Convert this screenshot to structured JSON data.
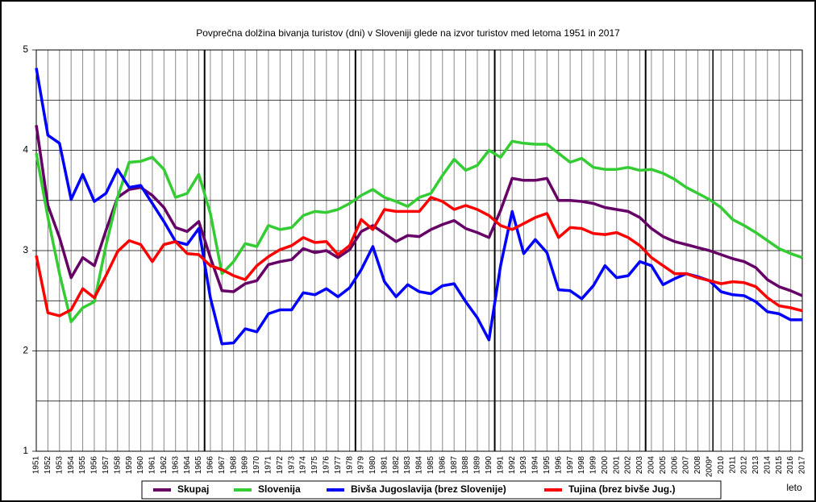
{
  "chart_data": {
    "type": "line",
    "title": "Povprečna dolžina bivanja turistov (dni) v Sloveniji glede na izvor turistov med letoma 1951 in 2017",
    "x_label": "leto",
    "categories": [
      "1951",
      "1952",
      "1953",
      "1954",
      "1955",
      "1956",
      "1957",
      "1958",
      "1959",
      "1960",
      "1961",
      "1962",
      "1963",
      "1964",
      "1965",
      "1966",
      "1967",
      "1968",
      "1969",
      "1970",
      "1971",
      "1972",
      "1973",
      "1974",
      "1975",
      "1976",
      "1977",
      "1978",
      "1979",
      "1980",
      "1981",
      "1982",
      "1983",
      "1984",
      "1985",
      "1986",
      "1987",
      "1988",
      "1989",
      "1990",
      "1991",
      "1992",
      "1993",
      "1994",
      "1995",
      "1996",
      "1997",
      "1998",
      "1999",
      "2000",
      "2001",
      "2002",
      "2003",
      "2004",
      "2005",
      "2006",
      "2007",
      "2008",
      "2009*",
      "2010",
      "2011",
      "2012",
      "2013",
      "2014",
      "2015",
      "2016",
      "2017"
    ],
    "ylim": [
      1,
      5
    ],
    "yticks": [
      1,
      2,
      3,
      4,
      5
    ],
    "yminor": [
      1.5,
      2.5,
      3.5,
      4.5
    ],
    "grid": true,
    "legend": "bottom",
    "series": [
      {
        "name": "Skupaj",
        "color": "#660066",
        "values": [
          4.25,
          3.45,
          3.13,
          2.73,
          2.93,
          2.85,
          3.2,
          3.53,
          3.61,
          3.63,
          3.55,
          3.43,
          3.23,
          3.19,
          3.29,
          2.93,
          2.6,
          2.59,
          2.67,
          2.7,
          2.86,
          2.89,
          2.91,
          3.02,
          2.98,
          3.0,
          2.93,
          3.01,
          3.19,
          3.25,
          3.17,
          3.09,
          3.15,
          3.14,
          3.21,
          3.26,
          3.3,
          3.22,
          3.18,
          3.13,
          3.4,
          3.72,
          3.7,
          3.7,
          3.72,
          3.5,
          3.5,
          3.49,
          3.47,
          3.43,
          3.41,
          3.39,
          3.33,
          3.22,
          3.14,
          3.09,
          3.06,
          3.03,
          3.0,
          2.96,
          2.92,
          2.89,
          2.83,
          2.71,
          2.64,
          2.6,
          2.55
        ]
      },
      {
        "name": "Slovenija",
        "color": "#33cc33",
        "values": [
          3.97,
          3.33,
          2.77,
          2.29,
          2.43,
          2.49,
          3.05,
          3.53,
          3.88,
          3.89,
          3.93,
          3.81,
          3.53,
          3.57,
          3.76,
          3.37,
          2.77,
          2.89,
          3.07,
          3.04,
          3.25,
          3.21,
          3.23,
          3.35,
          3.39,
          3.38,
          3.41,
          3.47,
          3.55,
          3.61,
          3.53,
          3.49,
          3.44,
          3.53,
          3.57,
          3.75,
          3.91,
          3.8,
          3.85,
          4.0,
          3.93,
          4.09,
          4.07,
          4.06,
          4.06,
          3.97,
          3.88,
          3.92,
          3.83,
          3.81,
          3.81,
          3.83,
          3.8,
          3.81,
          3.77,
          3.71,
          3.63,
          3.57,
          3.51,
          3.43,
          3.31,
          3.25,
          3.18,
          3.1,
          3.02,
          2.97,
          2.93
        ]
      },
      {
        "name": "Bivša Jugoslavija (brez Slovenije)",
        "color": "#0000ff",
        "values": [
          4.82,
          4.15,
          4.07,
          3.51,
          3.76,
          3.49,
          3.57,
          3.81,
          3.63,
          3.65,
          3.47,
          3.29,
          3.09,
          3.06,
          3.22,
          2.53,
          2.07,
          2.08,
          2.22,
          2.19,
          2.37,
          2.41,
          2.41,
          2.58,
          2.56,
          2.62,
          2.54,
          2.63,
          2.81,
          3.04,
          2.69,
          2.54,
          2.66,
          2.59,
          2.57,
          2.65,
          2.67,
          2.49,
          2.33,
          2.11,
          2.85,
          3.39,
          2.97,
          3.11,
          2.98,
          2.61,
          2.6,
          2.52,
          2.65,
          2.85,
          2.73,
          2.75,
          2.89,
          2.85,
          2.66,
          2.72,
          2.77,
          2.74,
          2.7,
          2.59,
          2.56,
          2.55,
          2.49,
          2.39,
          2.37,
          2.31,
          2.31
        ]
      },
      {
        "name": "Tujina (brez bivše Jug.)",
        "color": "#ff0000",
        "values": [
          2.95,
          2.38,
          2.35,
          2.41,
          2.62,
          2.53,
          2.75,
          2.99,
          3.1,
          3.06,
          2.89,
          3.06,
          3.09,
          2.97,
          2.96,
          2.85,
          2.81,
          2.75,
          2.71,
          2.85,
          2.94,
          3.01,
          3.05,
          3.13,
          3.08,
          3.09,
          2.96,
          3.05,
          3.31,
          3.21,
          3.41,
          3.39,
          3.39,
          3.39,
          3.53,
          3.49,
          3.41,
          3.45,
          3.41,
          3.35,
          3.25,
          3.21,
          3.27,
          3.33,
          3.37,
          3.13,
          3.23,
          3.22,
          3.17,
          3.16,
          3.18,
          3.13,
          3.05,
          2.93,
          2.85,
          2.77,
          2.77,
          2.73,
          2.7,
          2.67,
          2.69,
          2.68,
          2.64,
          2.53,
          2.45,
          2.43,
          2.4
        ]
      }
    ]
  }
}
